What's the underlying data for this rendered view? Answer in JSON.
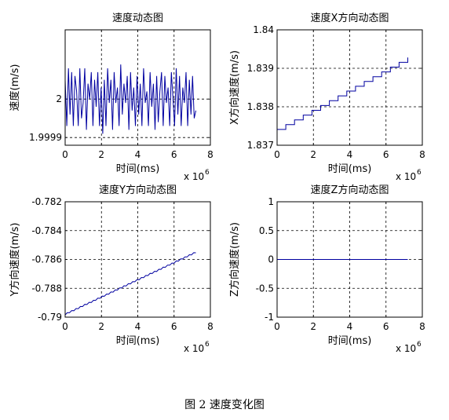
{
  "caption": "图 2  速度变化图",
  "chart_data": [
    {
      "type": "line",
      "title": "速度动态图",
      "xlabel": "时间(ms)",
      "ylabel": "速度(m/s)",
      "x_exponent_label": "x 10",
      "x_exponent": "6",
      "xlim": [
        0,
        8
      ],
      "ylim": [
        1.99988,
        2.00018
      ],
      "xticks": [
        "0",
        "2",
        "4",
        "6",
        "8"
      ],
      "yticks": [
        {
          "value": 1.9999,
          "label": "1.9999"
        },
        {
          "value": 2.0,
          "label": "2"
        }
      ],
      "grid": true,
      "series": [
        {
          "color": "#0000a0",
          "x": [
            0.0,
            0.09,
            0.18,
            0.27,
            0.36,
            0.45,
            0.54,
            0.63,
            0.72,
            0.81,
            0.9,
            0.99,
            1.08,
            1.17,
            1.26,
            1.35,
            1.44,
            1.53,
            1.62,
            1.71,
            1.8,
            1.89,
            1.98,
            2.07,
            2.16,
            2.25,
            2.34,
            2.43,
            2.52,
            2.61,
            2.7,
            2.79,
            2.88,
            2.97,
            3.06,
            3.15,
            3.24,
            3.33,
            3.42,
            3.51,
            3.6,
            3.69,
            3.78,
            3.87,
            3.96,
            4.05,
            4.14,
            4.23,
            4.32,
            4.41,
            4.5,
            4.59,
            4.68,
            4.77,
            4.86,
            4.95,
            5.04,
            5.13,
            5.22,
            5.31,
            5.4,
            5.49,
            5.58,
            5.67,
            5.76,
            5.85,
            5.94,
            6.03,
            6.12,
            6.21,
            6.3,
            6.39,
            6.48,
            6.57,
            6.66,
            6.75,
            6.84,
            6.93,
            7.02,
            7.11,
            7.2
          ],
          "y": [
            2.00005,
            1.99993,
            2.00008,
            1.99996,
            2.00007,
            1.99993,
            2.00006,
            2.00002,
            1.99993,
            2.00008,
            1.99995,
            1.99999,
            2.00008,
            1.99992,
            2.00004,
            2.0,
            2.00007,
            1.99993,
            2.00005,
            1.99998,
            2.00007,
            1.99993,
            2.00003,
            1.99991,
            2.00005,
            1.99993,
            2.00008,
            1.99999,
            2.00005,
            1.99992,
            2.00007,
            1.99999,
            2.00003,
            1.99993,
            2.00009,
            1.99996,
            2.00004,
            1.99999,
            2.00006,
            1.99992,
            2.00007,
            1.99997,
            2.00003,
            1.99993,
            2.00006,
            1.99996,
            2.00004,
            1.99993,
            2.00008,
            1.99999,
            2.00002,
            1.99993,
            2.00007,
            1.99998,
            2.00004,
            1.99992,
            2.00006,
            1.99994,
            2.00002,
            2.00007,
            1.99993,
            2.00006,
            1.99999,
            2.00003,
            1.99993,
            2.00007,
            2.0,
            1.99993,
            2.00008,
            1.99996,
            2.00006,
            1.99993,
            2.00003,
            1.99999,
            2.00007,
            1.99993,
            2.00005,
            1.99996,
            2.00006,
            1.99995,
            1.99997
          ]
        }
      ]
    },
    {
      "type": "line",
      "title": "速度X方向动态图",
      "xlabel": "时间(ms)",
      "ylabel": "X方向速度(m/s)",
      "x_exponent_label": "x 10",
      "x_exponent": "6",
      "xlim": [
        0,
        8
      ],
      "ylim": [
        1.837,
        1.84
      ],
      "xticks": [
        "0",
        "2",
        "4",
        "6",
        "8"
      ],
      "yticks": [
        {
          "value": 1.837,
          "label": "1.837"
        },
        {
          "value": 1.838,
          "label": "1.838"
        },
        {
          "value": 1.839,
          "label": "1.839"
        },
        {
          "value": 1.84,
          "label": "1.84"
        }
      ],
      "grid": true,
      "series": [
        {
          "color": "#0000a0",
          "x": [
            0.0,
            7.2
          ],
          "y": [
            1.83741,
            1.83928
          ]
        }
      ]
    },
    {
      "type": "line",
      "title": "速度Y方向动态图",
      "xlabel": "时间(ms)",
      "ylabel": "Y方向速度(m/s)",
      "x_exponent_label": "x 10",
      "x_exponent": "6",
      "xlim": [
        0,
        8
      ],
      "ylim": [
        -0.79,
        -0.782
      ],
      "xticks": [
        "0",
        "2",
        "4",
        "6",
        "8"
      ],
      "yticks": [
        {
          "value": -0.79,
          "label": "-0.79"
        },
        {
          "value": -0.788,
          "label": "-0.788"
        },
        {
          "value": -0.786,
          "label": "-0.786"
        },
        {
          "value": -0.784,
          "label": "-0.784"
        },
        {
          "value": -0.782,
          "label": "-0.782"
        }
      ],
      "grid": true,
      "series": [
        {
          "color": "#0000a0",
          "x": [
            0.0,
            7.2
          ],
          "y": [
            -0.7898,
            -0.7855
          ]
        }
      ]
    },
    {
      "type": "line",
      "title": "速度Z方向动态图",
      "xlabel": "时间(ms)",
      "ylabel": "Z方向速度(m/s)",
      "x_exponent_label": "x 10",
      "x_exponent": "6",
      "xlim": [
        0,
        8
      ],
      "ylim": [
        -1,
        1
      ],
      "xticks": [
        "0",
        "2",
        "4",
        "6",
        "8"
      ],
      "yticks": [
        {
          "value": -1,
          "label": "-1"
        },
        {
          "value": -0.5,
          "label": "-0.5"
        },
        {
          "value": 0,
          "label": "0"
        },
        {
          "value": 0.5,
          "label": "0.5"
        },
        {
          "value": 1,
          "label": "1"
        }
      ],
      "grid": true,
      "series": [
        {
          "color": "#0000a0",
          "x": [
            0.0,
            7.2
          ],
          "y": [
            0,
            0
          ]
        }
      ]
    }
  ]
}
